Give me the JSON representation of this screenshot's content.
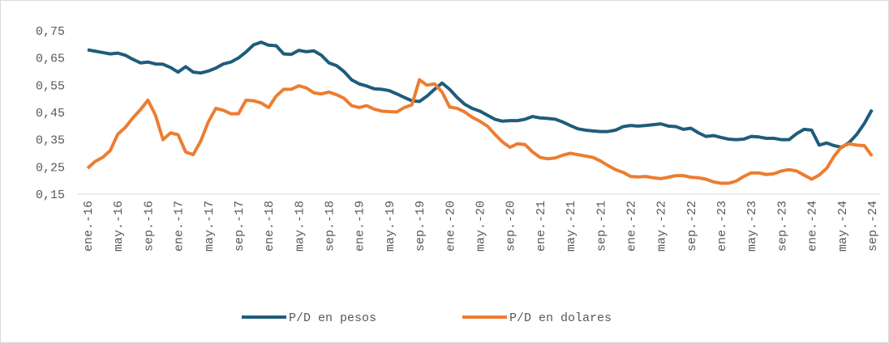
{
  "chart_data": {
    "type": "line",
    "categories": [
      "ene.-16",
      null,
      null,
      null,
      "may.-16",
      null,
      null,
      null,
      "sep.-16",
      null,
      null,
      null,
      "ene.-17",
      null,
      null,
      null,
      "may.-17",
      null,
      null,
      null,
      "sep.-17",
      null,
      null,
      null,
      "ene.-18",
      null,
      null,
      null,
      "may.-18",
      null,
      null,
      null,
      "sep.-18",
      null,
      null,
      null,
      "ene.-19",
      null,
      null,
      null,
      "may.-19",
      null,
      null,
      null,
      "sep.-19",
      null,
      null,
      null,
      "ene.-20",
      null,
      null,
      null,
      "may.-20",
      null,
      null,
      null,
      "sep.-20",
      null,
      null,
      null,
      "ene.-21",
      null,
      null,
      null,
      "may.-21",
      null,
      null,
      null,
      "sep.-21",
      null,
      null,
      null,
      "ene.-22",
      null,
      null,
      null,
      "may.-22",
      null,
      null,
      null,
      "sep.-22",
      null,
      null,
      null,
      "ene.-23",
      null,
      null,
      null,
      "may.-23",
      null,
      null,
      null,
      "sep.-23",
      null,
      null,
      null,
      "ene.-24",
      null,
      null,
      null,
      "may.-24",
      null,
      null,
      null,
      "sep.-24"
    ],
    "series": [
      {
        "name": "P/D en pesos",
        "color": "#1f5c7a",
        "values": [
          0.68,
          0.675,
          0.67,
          0.665,
          0.668,
          0.66,
          0.645,
          0.632,
          0.635,
          0.628,
          0.627,
          0.615,
          0.598,
          0.618,
          0.598,
          0.595,
          0.602,
          0.613,
          0.628,
          0.635,
          0.65,
          0.672,
          0.698,
          0.708,
          0.697,
          0.695,
          0.665,
          0.663,
          0.678,
          0.673,
          0.676,
          0.66,
          0.632,
          0.622,
          0.6,
          0.57,
          0.555,
          0.547,
          0.537,
          0.535,
          0.53,
          0.518,
          0.505,
          0.493,
          0.49,
          0.51,
          0.535,
          0.558,
          0.535,
          0.505,
          0.48,
          0.465,
          0.455,
          0.44,
          0.425,
          0.418,
          0.42,
          0.42,
          0.425,
          0.435,
          0.43,
          0.428,
          0.425,
          0.415,
          0.402,
          0.39,
          0.385,
          0.382,
          0.38,
          0.38,
          0.385,
          0.398,
          0.402,
          0.4,
          0.402,
          0.405,
          0.408,
          0.4,
          0.398,
          0.388,
          0.392,
          0.375,
          0.362,
          0.365,
          0.358,
          0.352,
          0.35,
          0.352,
          0.362,
          0.36,
          0.355,
          0.355,
          0.35,
          0.35,
          0.372,
          0.388,
          0.385,
          0.33,
          0.338,
          0.328,
          0.322,
          0.34,
          0.37,
          0.41,
          0.46
        ]
      },
      {
        "name": "P/D en dolares",
        "color": "#ed7d31",
        "values": [
          0.245,
          0.27,
          0.285,
          0.31,
          0.37,
          0.395,
          0.43,
          0.46,
          0.495,
          0.44,
          0.35,
          0.375,
          0.368,
          0.305,
          0.295,
          0.345,
          0.415,
          0.465,
          0.458,
          0.445,
          0.445,
          0.495,
          0.493,
          0.485,
          0.468,
          0.51,
          0.535,
          0.535,
          0.548,
          0.54,
          0.522,
          0.518,
          0.525,
          0.515,
          0.502,
          0.475,
          0.468,
          0.475,
          0.462,
          0.455,
          0.453,
          0.452,
          0.468,
          0.478,
          0.57,
          0.55,
          0.555,
          0.525,
          0.47,
          0.465,
          0.452,
          0.432,
          0.418,
          0.4,
          0.37,
          0.342,
          0.322,
          0.335,
          0.332,
          0.305,
          0.285,
          0.28,
          0.283,
          0.293,
          0.3,
          0.295,
          0.29,
          0.285,
          0.272,
          0.255,
          0.24,
          0.23,
          0.215,
          0.213,
          0.215,
          0.21,
          0.207,
          0.212,
          0.218,
          0.218,
          0.212,
          0.21,
          0.205,
          0.195,
          0.19,
          0.19,
          0.198,
          0.215,
          0.228,
          0.228,
          0.222,
          0.225,
          0.235,
          0.24,
          0.235,
          0.22,
          0.205,
          0.22,
          0.245,
          0.29,
          0.325,
          0.335,
          0.33,
          0.328,
          0.29
        ]
      }
    ],
    "ylim": [
      0.15,
      0.75
    ],
    "yticks": [
      {
        "value": 0.15,
        "label": "0,15"
      },
      {
        "value": 0.25,
        "label": "0,25"
      },
      {
        "value": 0.35,
        "label": "0,35"
      },
      {
        "value": 0.45,
        "label": "0,45"
      },
      {
        "value": 0.55,
        "label": "0,55"
      },
      {
        "value": 0.65,
        "label": "0,65"
      },
      {
        "value": 0.75,
        "label": "0,75"
      }
    ],
    "grid": false,
    "legend": "bottom"
  }
}
